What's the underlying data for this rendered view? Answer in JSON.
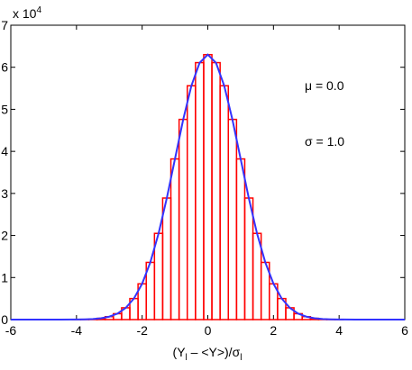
{
  "chart_data": {
    "type": "histogram",
    "multiplier": "x 10",
    "multiplier_exponent": "4",
    "xlabel_parts": [
      "(Y",
      "l",
      " – <Y>)/σ",
      "l"
    ],
    "annotations": [
      "μ = 0.0",
      "σ = 1.0"
    ],
    "xlim": [
      -6,
      6
    ],
    "xticks": [
      -6,
      -4,
      -2,
      0,
      2,
      4,
      6
    ],
    "ylim": [
      0,
      7
    ],
    "yticks": [
      0,
      1,
      2,
      3,
      4,
      5,
      6,
      7
    ],
    "histogram": {
      "color": "#ff0000",
      "bins": [
        -4.125,
        -3.875,
        -3.625,
        -3.375,
        -3.125,
        -2.875,
        -2.625,
        -2.375,
        -2.125,
        -1.875,
        -1.625,
        -1.375,
        -1.125,
        -0.875,
        -0.625,
        -0.375,
        -0.125,
        0.125,
        0.375,
        0.625,
        0.875,
        1.125,
        1.375,
        1.625,
        1.875,
        2.125,
        2.375,
        2.625,
        2.875,
        3.125,
        3.375,
        3.625,
        3.875,
        4.125
      ],
      "values": [
        0.002,
        0.006,
        0.01,
        0.03,
        0.07,
        0.14,
        0.28,
        0.5,
        0.85,
        1.36,
        2.05,
        2.89,
        3.82,
        4.76,
        5.56,
        6.11,
        6.3,
        6.11,
        5.56,
        4.76,
        3.82,
        2.89,
        2.05,
        1.36,
        0.85,
        0.5,
        0.28,
        0.14,
        0.07,
        0.03,
        0.01,
        0.006,
        0.002
      ]
    },
    "curve": {
      "color": "#3333ff",
      "x": [
        -6,
        -5,
        -4.5,
        -4,
        -3.75,
        -3.5,
        -3.25,
        -3,
        -2.75,
        -2.5,
        -2.25,
        -2,
        -1.75,
        -1.5,
        -1.25,
        -1,
        -0.75,
        -0.5,
        -0.25,
        0,
        0.25,
        0.5,
        0.75,
        1,
        1.25,
        1.5,
        1.75,
        2,
        2.25,
        2.5,
        2.75,
        3,
        3.25,
        3.5,
        3.75,
        4,
        4.5,
        5,
        6
      ],
      "values": [
        0,
        0,
        0,
        0.002,
        0.006,
        0.014,
        0.032,
        0.07,
        0.143,
        0.277,
        0.501,
        0.853,
        1.363,
        2.046,
        2.884,
        3.821,
        4.755,
        5.56,
        6.106,
        6.3,
        6.106,
        5.56,
        4.755,
        3.821,
        2.884,
        2.046,
        1.363,
        0.853,
        0.501,
        0.277,
        0.143,
        0.07,
        0.032,
        0.014,
        0.006,
        0.002,
        0,
        0,
        0
      ]
    }
  }
}
